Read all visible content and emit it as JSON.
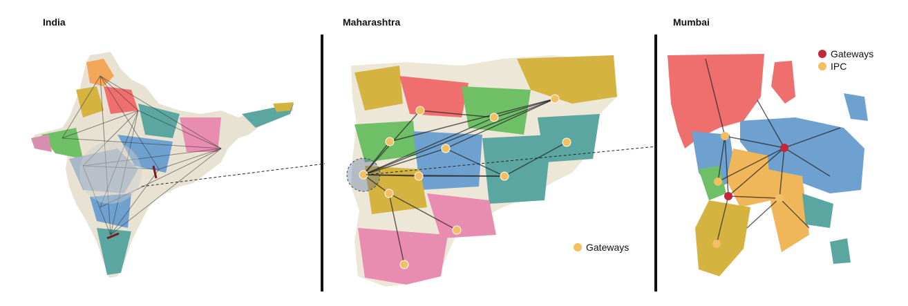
{
  "panels": {
    "india": {
      "title": "India"
    },
    "maharashtra": {
      "title": "Maharashtra",
      "legend": [
        {
          "label": "Gateways",
          "color": "#f2bf63"
        }
      ]
    },
    "mumbai": {
      "title": "Mumbai",
      "legend": [
        {
          "label": "Gateways",
          "color": "#c2273a"
        },
        {
          "label": "IPC",
          "color": "#f2bf63"
        }
      ]
    }
  },
  "colors": {
    "red": "#ef6f6f",
    "blue": "#6ea1cf",
    "green": "#6fbf66",
    "teal": "#5ba6a1",
    "yellow": "#d4b340",
    "orange": "#f0b65a",
    "pink": "#e88cb0",
    "gray": "#999999",
    "line": "#333333",
    "gateway": "#f2bf63",
    "gateway_red": "#c2273a"
  }
}
